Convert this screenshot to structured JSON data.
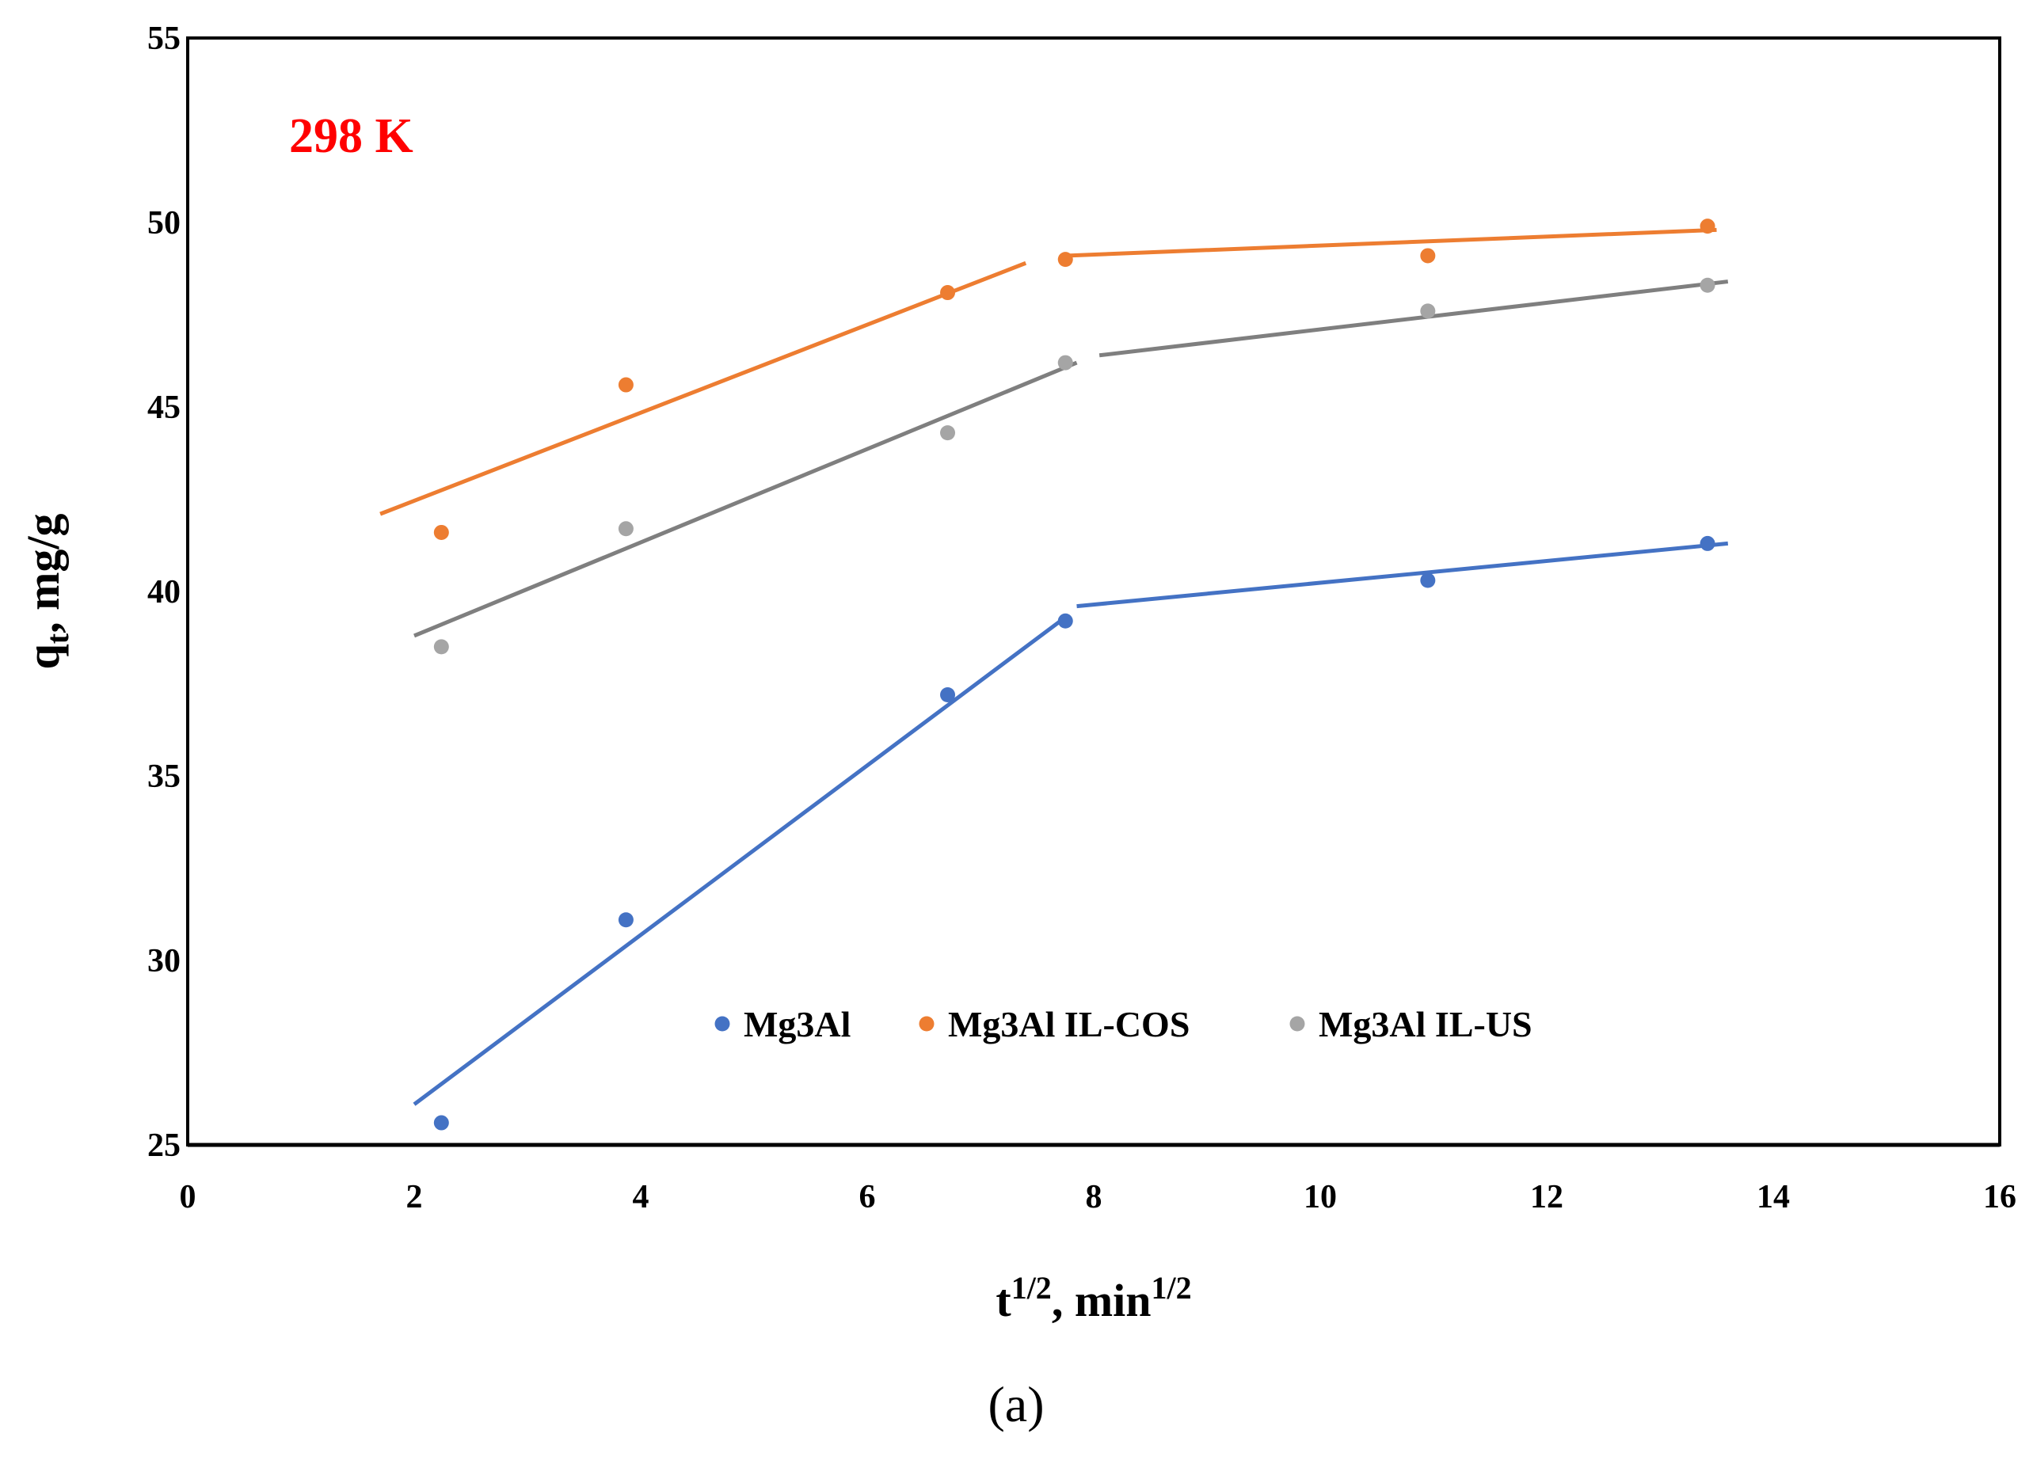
{
  "chart_data": {
    "type": "scatter",
    "title": "",
    "xlabel": "t1/2, min1/2",
    "xlabel_parts": {
      "base": "t",
      "sup1": "1/2",
      "mid": ", min",
      "sup2": "1/2"
    },
    "ylabel": "qt, mg/g",
    "ylabel_parts": {
      "base": "q",
      "sub": "t",
      "rest": ", mg/g"
    },
    "xlim": [
      0,
      16
    ],
    "ylim": [
      25,
      55
    ],
    "xticks": [
      0,
      2,
      4,
      6,
      8,
      10,
      12,
      14,
      16
    ],
    "yticks": [
      25,
      30,
      35,
      40,
      45,
      50,
      55
    ],
    "grid": false,
    "legend_position": "bottom-center",
    "annotation": {
      "text": "298 K",
      "color": "#ff0000"
    },
    "caption": "(a)",
    "series": [
      {
        "name": "Mg3Al",
        "color": "#4472c4",
        "x": [
          2.24,
          3.87,
          6.71,
          7.75,
          10.95,
          13.42
        ],
        "y": [
          25.6,
          31.1,
          37.2,
          39.2,
          40.3,
          41.3
        ],
        "fits": [
          {
            "x": [
              2.0,
              7.75
            ],
            "y": [
              26.1,
              39.3
            ]
          },
          {
            "x": [
              7.85,
              13.6
            ],
            "y": [
              39.6,
              41.3
            ]
          }
        ]
      },
      {
        "name": "Mg3Al IL-COS",
        "color": "#ed7d31",
        "x": [
          2.24,
          3.87,
          6.71,
          7.75,
          10.95,
          13.42
        ],
        "y": [
          41.6,
          45.6,
          48.1,
          49.0,
          49.1,
          49.9
        ],
        "fits": [
          {
            "x": [
              1.7,
              7.4
            ],
            "y": [
              42.1,
              48.9
            ]
          },
          {
            "x": [
              7.75,
              13.5
            ],
            "y": [
              49.1,
              49.8
            ]
          }
        ]
      },
      {
        "name": "Mg3Al IL-US",
        "color": "#a5a5a5",
        "line_color": "#7f7f7f",
        "x": [
          2.24,
          3.87,
          6.71,
          7.75,
          10.95,
          13.42
        ],
        "y": [
          38.5,
          41.7,
          44.3,
          46.2,
          47.6,
          48.3
        ],
        "fits": [
          {
            "x": [
              2.0,
              7.85
            ],
            "y": [
              38.8,
              46.2
            ]
          },
          {
            "x": [
              8.05,
              13.6
            ],
            "y": [
              46.4,
              48.4
            ]
          }
        ]
      }
    ]
  }
}
